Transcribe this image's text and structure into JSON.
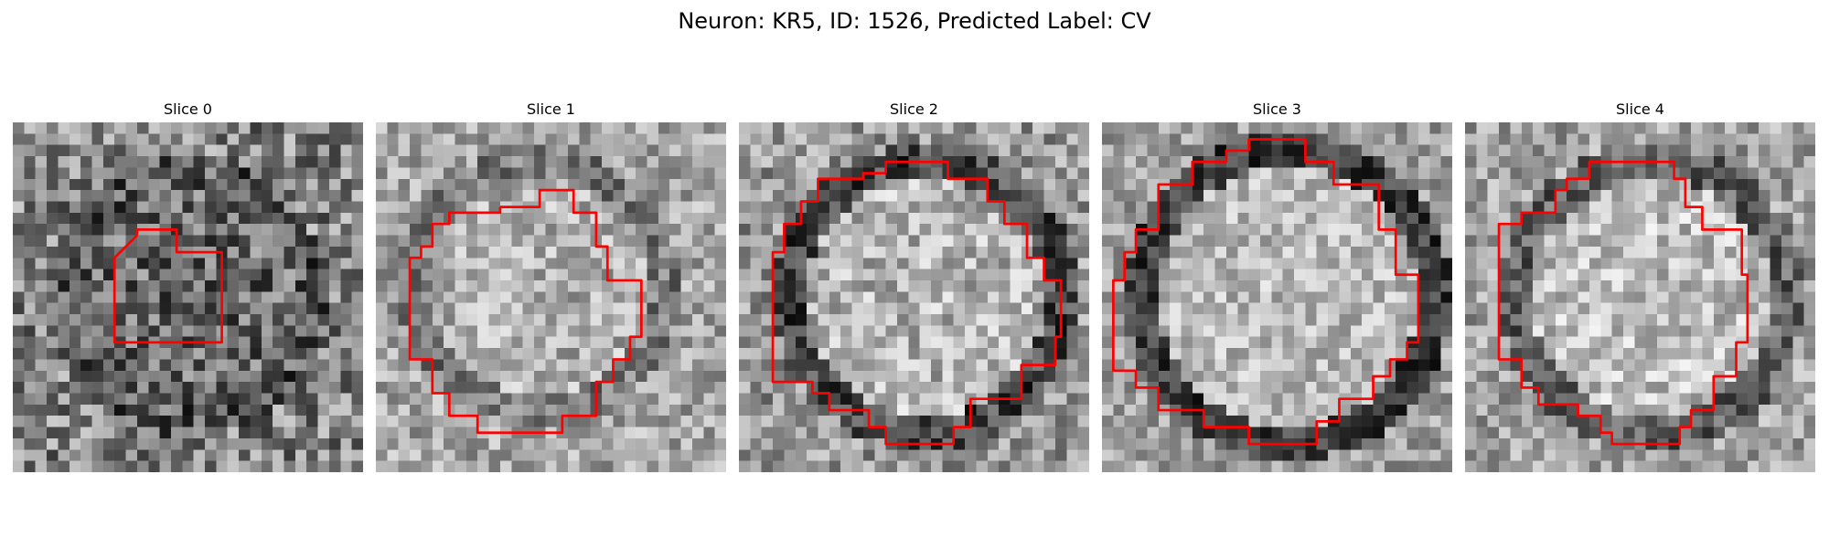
{
  "figure": {
    "title": "Neuron: KR5, ID: 1526, Predicted Label: CV"
  },
  "colormap": "gray",
  "contour_color": "#ff0000",
  "slices": [
    {
      "title": "Slice 0"
    },
    {
      "title": "Slice 1"
    },
    {
      "title": "Slice 2"
    },
    {
      "title": "Slice 3"
    },
    {
      "title": "Slice 4"
    }
  ]
}
